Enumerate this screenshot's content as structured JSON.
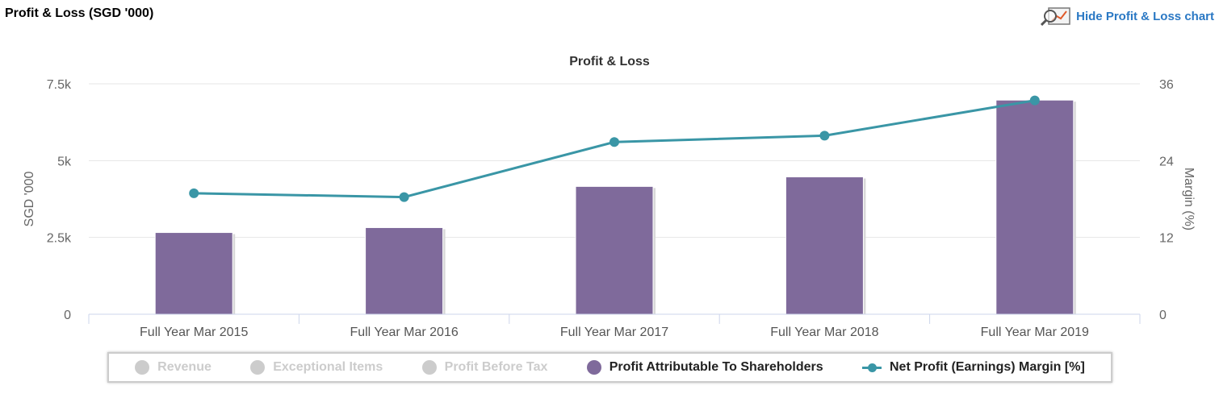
{
  "header": {
    "title": "Profit & Loss (SGD '000)",
    "hide_link": "Hide Profit & Loss chart"
  },
  "chart_data": {
    "type": "bar+line",
    "title": "Profit & Loss",
    "categories": [
      "Full Year Mar 2015",
      "Full Year Mar 2016",
      "Full Year Mar 2017",
      "Full Year Mar 2018",
      "Full Year Mar 2019"
    ],
    "ylabel": "SGD '000",
    "y2label": "Margin (%)",
    "ylim": [
      0,
      7500
    ],
    "y2lim": [
      0,
      36
    ],
    "yticks": [
      "0",
      "2.5k",
      "5k",
      "7.5k"
    ],
    "y2ticks": [
      "0",
      "12",
      "24",
      "36"
    ],
    "series": [
      {
        "name": "Profit Attributable To Shareholders",
        "type": "bar",
        "axis": "left",
        "color": "#7f6a9b",
        "values": [
          2660,
          2820,
          4160,
          4470,
          6970
        ]
      },
      {
        "name": "Net Profit (Earnings) Margin [%]",
        "type": "line",
        "axis": "right",
        "color": "#3a96a6",
        "values": [
          18.9,
          18.3,
          26.9,
          27.9,
          33.4
        ]
      }
    ],
    "legend": {
      "placement": "bottom",
      "items": [
        {
          "label": "Revenue",
          "active": false
        },
        {
          "label": "Exceptional Items",
          "active": false
        },
        {
          "label": "Profit Before Tax",
          "active": false
        },
        {
          "label": "Profit Attributable To Shareholders",
          "active": true,
          "symbol": "circle",
          "color": "#7f6a9b"
        },
        {
          "label": "Net Profit (Earnings) Margin [%]",
          "active": true,
          "symbol": "line",
          "color": "#3a96a6"
        }
      ]
    },
    "grid": true
  }
}
